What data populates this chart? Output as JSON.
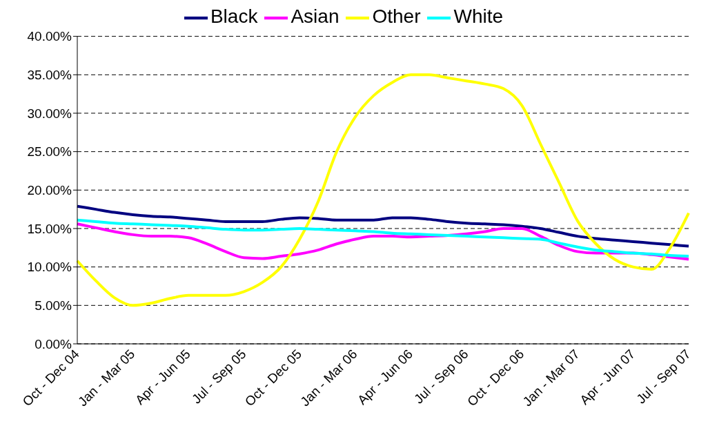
{
  "chart_data": {
    "type": "line",
    "categories": [
      "Oct - Dec 04",
      null,
      null,
      "Jan - Mar 05",
      null,
      null,
      "Apr - Jun 05",
      null,
      null,
      "Jul - Sep 05",
      null,
      null,
      "Oct - Dec 05",
      null,
      null,
      "Jan - Mar 06",
      null,
      null,
      "Apr - Jun 06",
      null,
      null,
      "Jul - Sep 06",
      null,
      null,
      "Oct - Dec 06",
      null,
      null,
      "Jan - Mar 07",
      null,
      null,
      "Apr - Jun 07",
      null,
      null,
      "Jul - Sep 07"
    ],
    "series": [
      {
        "name": "Black",
        "color": "#000080",
        "values": [
          17.9,
          17.5,
          17.1,
          16.8,
          16.6,
          16.5,
          16.3,
          16.1,
          15.9,
          15.9,
          15.9,
          16.2,
          16.4,
          16.3,
          16.1,
          16.1,
          16.1,
          16.4,
          16.4,
          16.2,
          15.9,
          15.7,
          15.6,
          15.5,
          15.3,
          15.0,
          14.5,
          14.0,
          13.7,
          13.5,
          13.3,
          13.1,
          12.9,
          12.7
        ]
      },
      {
        "name": "Asian",
        "color": "#ff00ff",
        "values": [
          15.6,
          15.1,
          14.6,
          14.2,
          14.0,
          14.0,
          13.8,
          13.0,
          12.0,
          11.2,
          11.1,
          11.4,
          11.7,
          12.2,
          13.0,
          13.6,
          14.0,
          14.0,
          13.9,
          14.0,
          14.1,
          14.3,
          14.6,
          15.0,
          15.0,
          14.0,
          12.8,
          12.0,
          11.8,
          11.8,
          11.8,
          11.6,
          11.3,
          11.0
        ]
      },
      {
        "name": "Other",
        "color": "#ffff00",
        "values": [
          10.8,
          8.2,
          6.0,
          5.0,
          5.3,
          5.9,
          6.3,
          6.3,
          6.3,
          6.8,
          8.0,
          10.0,
          13.6,
          18.5,
          25.0,
          29.5,
          32.3,
          34.0,
          35.0,
          35.0,
          34.6,
          34.2,
          33.8,
          33.2,
          31.0,
          26.0,
          21.0,
          16.0,
          13.0,
          11.0,
          10.0,
          9.7,
          12.5,
          17.0
        ]
      },
      {
        "name": "White",
        "color": "#00ffff",
        "values": [
          16.1,
          15.9,
          15.7,
          15.6,
          15.5,
          15.4,
          15.3,
          15.1,
          14.9,
          14.8,
          14.8,
          14.9,
          15.0,
          14.9,
          14.8,
          14.7,
          14.6,
          14.4,
          14.3,
          14.2,
          14.1,
          14.0,
          13.9,
          13.8,
          13.7,
          13.6,
          13.1,
          12.6,
          12.2,
          12.0,
          11.8,
          11.7,
          11.5,
          11.4
        ]
      }
    ],
    "ylim": [
      0,
      40
    ],
    "yticks": [
      {
        "value": 0,
        "label": "0.00%"
      },
      {
        "value": 5,
        "label": "5.00%"
      },
      {
        "value": 10,
        "label": "10.00%"
      },
      {
        "value": 15,
        "label": "15.00%"
      },
      {
        "value": 20,
        "label": "20.00%"
      },
      {
        "value": 25,
        "label": "25.00%"
      },
      {
        "value": 30,
        "label": "30.00%"
      },
      {
        "value": 35,
        "label": "35.00%"
      },
      {
        "value": 40,
        "label": "40.00%"
      }
    ],
    "grid": "y",
    "legend": "top",
    "marker": "none",
    "line_style": "solid"
  }
}
